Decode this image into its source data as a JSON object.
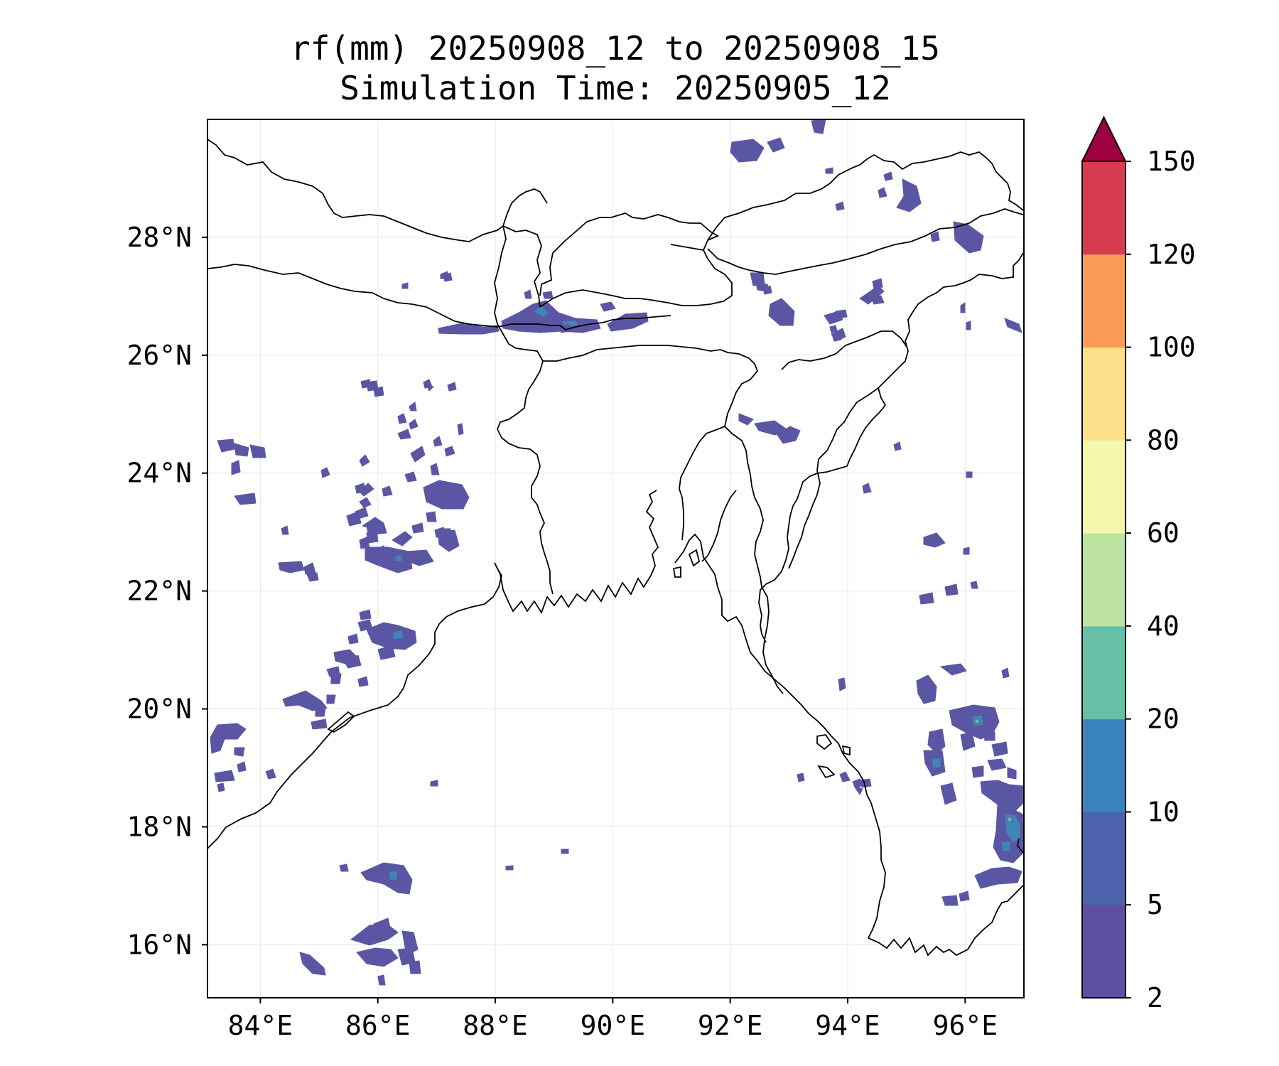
{
  "title_line1": "rf(mm) 20250908_12 to 20250908_15",
  "title_line2": "Simulation Time: 20250905_12",
  "map": {
    "lon_range": [
      83.1,
      97.0
    ],
    "lat_range": [
      15.1,
      30.0
    ],
    "lon_ticks": [
      {
        "value": 84,
        "label": "84°E"
      },
      {
        "value": 86,
        "label": "86°E"
      },
      {
        "value": 88,
        "label": "88°E"
      },
      {
        "value": 90,
        "label": "90°E"
      },
      {
        "value": 92,
        "label": "92°E"
      },
      {
        "value": 94,
        "label": "94°E"
      },
      {
        "value": 96,
        "label": "96°E"
      }
    ],
    "lat_ticks": [
      {
        "value": 16,
        "label": "16°N"
      },
      {
        "value": 18,
        "label": "18°N"
      },
      {
        "value": 20,
        "label": "20°N"
      },
      {
        "value": 22,
        "label": "22°N"
      },
      {
        "value": 24,
        "label": "24°N"
      },
      {
        "value": 26,
        "label": "26°N"
      },
      {
        "value": 28,
        "label": "28°N"
      }
    ],
    "gridlines": true
  },
  "colorbar": {
    "extend": "max",
    "extend_color": "#9e0142",
    "levels": [
      {
        "label": "2",
        "color": "#5e4fa2"
      },
      {
        "label": "5",
        "color": "#4d62ad"
      },
      {
        "label": "10",
        "color": "#3a82bb"
      },
      {
        "label": "20",
        "color": "#65c0a6"
      },
      {
        "label": "40",
        "color": "#bde3a0"
      },
      {
        "label": "60",
        "color": "#f3f8ad"
      },
      {
        "label": "80",
        "color": "#fce08a"
      },
      {
        "label": "100",
        "color": "#fa9b57"
      },
      {
        "label": "120",
        "color": "#d53d4f"
      },
      {
        "label": "150",
        "color": ""
      }
    ]
  },
  "rain_colors": {
    "low": "#5b56a4",
    "mid": "#3e86b8",
    "high": "#66c1a4"
  }
}
